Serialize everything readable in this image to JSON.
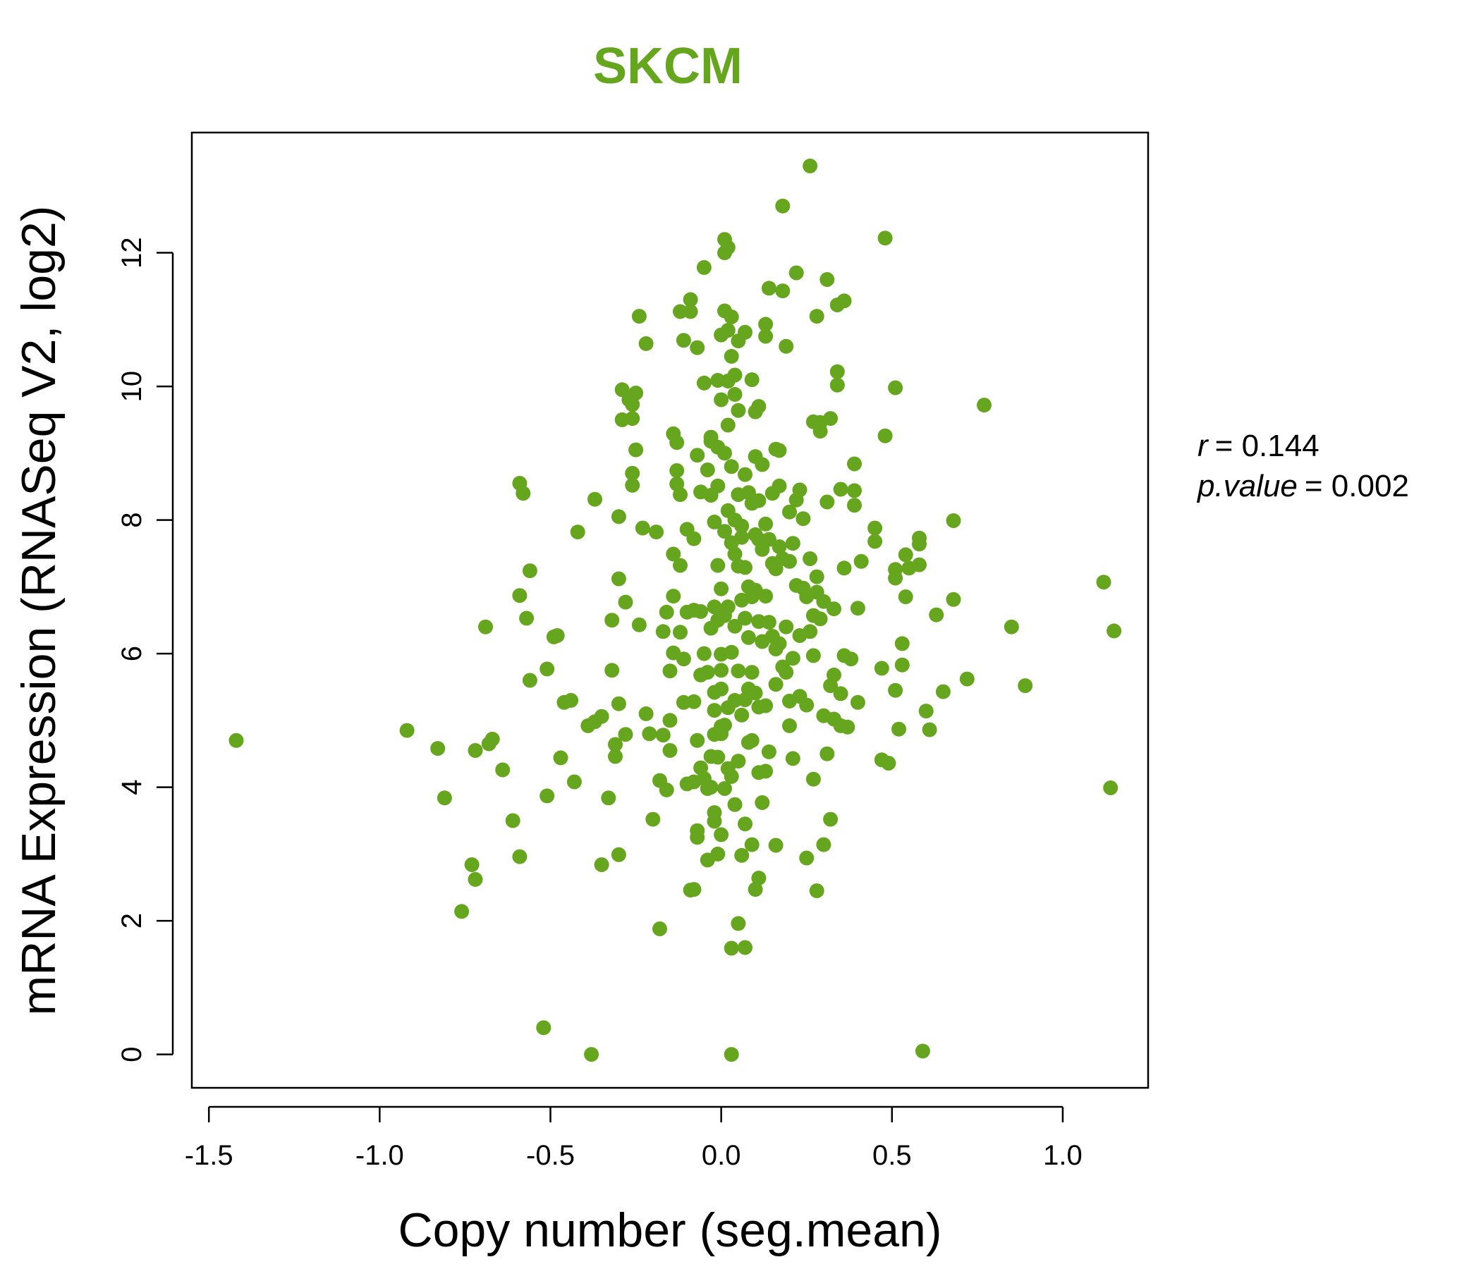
{
  "chart_data": {
    "type": "scatter",
    "title": "SKCM",
    "xlabel": "Copy number (seg.mean)",
    "ylabel": "mRNA Expression (RNASeq V2, log2)",
    "xlim": [
      -1.55,
      1.25
    ],
    "ylim": [
      -0.5,
      13.8
    ],
    "x_ticks": [
      -1.5,
      -1.0,
      -0.5,
      0.0,
      0.5,
      1.0
    ],
    "x_tick_labels": [
      "-1.5",
      "-1.0",
      "-0.5",
      "0.0",
      "0.5",
      "1.0"
    ],
    "y_ticks": [
      0,
      2,
      4,
      6,
      8,
      10,
      12
    ],
    "y_tick_labels": [
      "0",
      "2",
      "4",
      "6",
      "8",
      "10",
      "12"
    ],
    "grid": false,
    "point_color": "#66a61e",
    "annotation": {
      "r_label": "r",
      "r_value": "= 0.144",
      "p_label": "p.value",
      "p_value": "= 0.002"
    },
    "points": [
      [
        -1.42,
        4.7
      ],
      [
        -0.92,
        4.85
      ],
      [
        -0.83,
        4.58
      ],
      [
        -0.81,
        3.84
      ],
      [
        -0.76,
        2.14
      ],
      [
        -0.73,
        2.84
      ],
      [
        -0.72,
        2.62
      ],
      [
        -0.72,
        4.55
      ],
      [
        -0.69,
        6.4
      ],
      [
        -0.68,
        4.65
      ],
      [
        -0.67,
        4.72
      ],
      [
        -0.64,
        4.26
      ],
      [
        -0.61,
        3.5
      ],
      [
        -0.59,
        2.96
      ],
      [
        -0.59,
        6.87
      ],
      [
        -0.59,
        8.55
      ],
      [
        -0.58,
        8.4
      ],
      [
        -0.57,
        6.53
      ],
      [
        -0.56,
        7.24
      ],
      [
        -0.56,
        5.6
      ],
      [
        -0.52,
        0.4
      ],
      [
        -0.51,
        5.77
      ],
      [
        -0.51,
        3.87
      ],
      [
        -0.49,
        6.25
      ],
      [
        -0.48,
        6.27
      ],
      [
        -0.47,
        4.44
      ],
      [
        -0.46,
        5.27
      ],
      [
        -0.44,
        5.3
      ],
      [
        -0.43,
        4.08
      ],
      [
        -0.42,
        7.82
      ],
      [
        -0.39,
        4.92
      ],
      [
        -0.38,
        0.0
      ],
      [
        -0.37,
        4.98
      ],
      [
        -0.37,
        8.31
      ],
      [
        -0.35,
        5.06
      ],
      [
        -0.35,
        2.84
      ],
      [
        -0.33,
        3.84
      ],
      [
        -0.32,
        6.5
      ],
      [
        -0.32,
        5.75
      ],
      [
        -0.31,
        4.64
      ],
      [
        -0.31,
        4.46
      ],
      [
        -0.3,
        7.12
      ],
      [
        -0.3,
        8.05
      ],
      [
        -0.3,
        5.25
      ],
      [
        -0.3,
        2.99
      ],
      [
        -0.29,
        9.95
      ],
      [
        -0.29,
        9.5
      ],
      [
        -0.28,
        6.77
      ],
      [
        -0.28,
        4.79
      ],
      [
        -0.27,
        9.8
      ],
      [
        -0.26,
        9.52
      ],
      [
        -0.25,
        9.9
      ],
      [
        -0.26,
        9.73
      ],
      [
        -0.26,
        8.7
      ],
      [
        -0.26,
        8.52
      ],
      [
        -0.24,
        11.05
      ],
      [
        -0.25,
        9.05
      ],
      [
        -0.24,
        6.43
      ],
      [
        -0.23,
        7.88
      ],
      [
        -0.22,
        5.1
      ],
      [
        -0.22,
        10.64
      ],
      [
        -0.21,
        4.8
      ],
      [
        -0.2,
        3.52
      ],
      [
        -0.19,
        7.82
      ],
      [
        -0.18,
        1.88
      ],
      [
        -0.18,
        4.1
      ],
      [
        -0.17,
        4.78
      ],
      [
        -0.17,
        6.33
      ],
      [
        -0.16,
        6.62
      ],
      [
        -0.16,
        3.96
      ],
      [
        -0.15,
        5.0
      ],
      [
        -0.15,
        5.74
      ],
      [
        -0.15,
        4.55
      ],
      [
        -0.14,
        6.01
      ],
      [
        -0.14,
        6.86
      ],
      [
        -0.14,
        7.49
      ],
      [
        -0.14,
        9.29
      ],
      [
        -0.13,
        9.16
      ],
      [
        -0.13,
        8.74
      ],
      [
        -0.13,
        8.54
      ],
      [
        -0.12,
        7.32
      ],
      [
        -0.12,
        8.38
      ],
      [
        -0.12,
        6.32
      ],
      [
        -0.12,
        11.12
      ],
      [
        -0.11,
        10.69
      ],
      [
        -0.11,
        5.27
      ],
      [
        -0.11,
        5.92
      ],
      [
        -0.1,
        4.05
      ],
      [
        -0.1,
        7.86
      ],
      [
        -0.1,
        6.62
      ],
      [
        -0.09,
        11.3
      ],
      [
        -0.09,
        2.46
      ],
      [
        -0.09,
        11.12
      ],
      [
        -0.08,
        4.08
      ],
      [
        -0.08,
        5.28
      ],
      [
        -0.08,
        2.47
      ],
      [
        -0.08,
        6.65
      ],
      [
        -0.08,
        7.72
      ],
      [
        -0.07,
        3.35
      ],
      [
        -0.07,
        3.25
      ],
      [
        -0.07,
        8.97
      ],
      [
        -0.07,
        10.58
      ],
      [
        -0.07,
        4.7
      ],
      [
        -0.06,
        6.63
      ],
      [
        -0.06,
        5.68
      ],
      [
        -0.06,
        4.29
      ],
      [
        -0.06,
        8.42
      ],
      [
        -0.05,
        4.13
      ],
      [
        -0.05,
        11.78
      ],
      [
        -0.05,
        6.0
      ],
      [
        -0.05,
        10.05
      ],
      [
        -0.04,
        5.72
      ],
      [
        -0.04,
        3.98
      ],
      [
        -0.04,
        2.91
      ],
      [
        -0.04,
        8.75
      ],
      [
        -0.03,
        4.0
      ],
      [
        -0.03,
        9.18
      ],
      [
        -0.03,
        9.24
      ],
      [
        -0.03,
        6.38
      ],
      [
        -0.03,
        4.46
      ],
      [
        -0.03,
        8.37
      ],
      [
        -0.02,
        6.7
      ],
      [
        -0.02,
        7.97
      ],
      [
        -0.02,
        4.79
      ],
      [
        -0.02,
        5.42
      ],
      [
        -0.02,
        3.62
      ],
      [
        -0.02,
        3.49
      ],
      [
        -0.02,
        5.15
      ],
      [
        -0.01,
        4.45
      ],
      [
        -0.01,
        9.09
      ],
      [
        -0.01,
        8.51
      ],
      [
        -0.01,
        7.32
      ],
      [
        -0.01,
        6.5
      ],
      [
        -0.01,
        10.09
      ],
      [
        -0.01,
        3.0
      ],
      [
        0.0,
        4.91
      ],
      [
        0.0,
        10.77
      ],
      [
        0.0,
        9.8
      ],
      [
        0.0,
        6.97
      ],
      [
        0.0,
        5.47
      ],
      [
        0.0,
        5.75
      ],
      [
        0.0,
        5.99
      ],
      [
        0.0,
        4.8
      ],
      [
        0.0,
        3.29
      ],
      [
        0.01,
        12.0
      ],
      [
        0.01,
        12.2
      ],
      [
        0.01,
        11.13
      ],
      [
        0.01,
        9.0
      ],
      [
        0.01,
        7.83
      ],
      [
        0.01,
        6.57
      ],
      [
        0.01,
        4.93
      ],
      [
        0.01,
        3.98
      ],
      [
        0.02,
        12.08
      ],
      [
        0.02,
        10.84
      ],
      [
        0.02,
        10.08
      ],
      [
        0.02,
        9.42
      ],
      [
        0.02,
        8.14
      ],
      [
        0.02,
        5.19
      ],
      [
        0.02,
        6.7
      ],
      [
        0.02,
        4.28
      ],
      [
        0.03,
        11.04
      ],
      [
        0.03,
        10.45
      ],
      [
        0.03,
        8.8
      ],
      [
        0.03,
        7.66
      ],
      [
        0.03,
        6.02
      ],
      [
        0.03,
        4.16
      ],
      [
        0.03,
        1.59
      ],
      [
        0.03,
        0.0
      ],
      [
        0.04,
        10.17
      ],
      [
        0.04,
        9.88
      ],
      [
        0.04,
        8.0
      ],
      [
        0.04,
        7.49
      ],
      [
        0.04,
        6.41
      ],
      [
        0.04,
        5.3
      ],
      [
        0.04,
        3.74
      ],
      [
        0.05,
        10.68
      ],
      [
        0.05,
        9.64
      ],
      [
        0.05,
        8.38
      ],
      [
        0.05,
        7.31
      ],
      [
        0.05,
        5.74
      ],
      [
        0.05,
        4.39
      ],
      [
        0.05,
        1.96
      ],
      [
        0.06,
        7.74
      ],
      [
        0.06,
        6.8
      ],
      [
        0.06,
        5.08
      ],
      [
        0.06,
        2.98
      ],
      [
        0.06,
        7.91
      ],
      [
        0.07,
        10.81
      ],
      [
        0.07,
        8.68
      ],
      [
        0.07,
        7.29
      ],
      [
        0.07,
        6.53
      ],
      [
        0.07,
        5.31
      ],
      [
        0.07,
        3.45
      ],
      [
        0.07,
        1.6
      ],
      [
        0.08,
        8.41
      ],
      [
        0.08,
        7.0
      ],
      [
        0.08,
        6.24
      ],
      [
        0.08,
        5.47
      ],
      [
        0.08,
        4.67
      ],
      [
        0.09,
        10.1
      ],
      [
        0.09,
        8.25
      ],
      [
        0.09,
        6.85
      ],
      [
        0.09,
        5.72
      ],
      [
        0.09,
        4.7
      ],
      [
        0.09,
        3.14
      ],
      [
        0.1,
        9.62
      ],
      [
        0.1,
        8.95
      ],
      [
        0.1,
        7.78
      ],
      [
        0.1,
        6.95
      ],
      [
        0.1,
        5.41
      ],
      [
        0.1,
        2.47
      ],
      [
        0.11,
        9.7
      ],
      [
        0.11,
        8.29
      ],
      [
        0.11,
        7.71
      ],
      [
        0.11,
        6.48
      ],
      [
        0.11,
        5.2
      ],
      [
        0.11,
        4.22
      ],
      [
        0.11,
        2.64
      ],
      [
        0.12,
        8.83
      ],
      [
        0.12,
        7.56
      ],
      [
        0.12,
        6.18
      ],
      [
        0.12,
        3.77
      ],
      [
        0.13,
        10.93
      ],
      [
        0.13,
        10.75
      ],
      [
        0.13,
        7.94
      ],
      [
        0.13,
        6.86
      ],
      [
        0.13,
        5.22
      ],
      [
        0.13,
        4.24
      ],
      [
        0.14,
        11.47
      ],
      [
        0.14,
        7.71
      ],
      [
        0.14,
        6.47
      ],
      [
        0.14,
        4.53
      ],
      [
        0.15,
        8.4
      ],
      [
        0.15,
        7.35
      ],
      [
        0.15,
        6.26
      ],
      [
        0.16,
        9.06
      ],
      [
        0.16,
        7.27
      ],
      [
        0.16,
        6.07
      ],
      [
        0.16,
        5.54
      ],
      [
        0.16,
        3.13
      ],
      [
        0.17,
        9.04
      ],
      [
        0.17,
        8.51
      ],
      [
        0.17,
        7.6
      ],
      [
        0.17,
        6.15
      ],
      [
        0.18,
        12.7
      ],
      [
        0.18,
        11.43
      ],
      [
        0.18,
        7.42
      ],
      [
        0.18,
        5.8
      ],
      [
        0.19,
        10.6
      ],
      [
        0.19,
        6.4
      ],
      [
        0.19,
        5.72
      ],
      [
        0.2,
        8.12
      ],
      [
        0.2,
        7.38
      ],
      [
        0.2,
        5.29
      ],
      [
        0.2,
        4.92
      ],
      [
        0.21,
        7.65
      ],
      [
        0.21,
        5.93
      ],
      [
        0.21,
        4.43
      ],
      [
        0.22,
        11.7
      ],
      [
        0.22,
        8.3
      ],
      [
        0.22,
        7.02
      ],
      [
        0.23,
        8.45
      ],
      [
        0.23,
        6.27
      ],
      [
        0.23,
        5.36
      ],
      [
        0.24,
        8.02
      ],
      [
        0.24,
        6.98
      ],
      [
        0.25,
        6.85
      ],
      [
        0.25,
        5.23
      ],
      [
        0.25,
        2.94
      ],
      [
        0.26,
        13.3
      ],
      [
        0.26,
        7.42
      ],
      [
        0.26,
        6.33
      ],
      [
        0.27,
        9.47
      ],
      [
        0.27,
        6.57
      ],
      [
        0.27,
        5.97
      ],
      [
        0.27,
        4.12
      ],
      [
        0.28,
        11.05
      ],
      [
        0.28,
        7.15
      ],
      [
        0.28,
        6.92
      ],
      [
        0.28,
        2.45
      ],
      [
        0.29,
        9.46
      ],
      [
        0.29,
        9.33
      ],
      [
        0.29,
        6.52
      ],
      [
        0.3,
        6.78
      ],
      [
        0.3,
        5.07
      ],
      [
        0.3,
        3.14
      ],
      [
        0.31,
        11.6
      ],
      [
        0.31,
        8.27
      ],
      [
        0.31,
        4.5
      ],
      [
        0.32,
        9.52
      ],
      [
        0.32,
        5.52
      ],
      [
        0.32,
        3.52
      ],
      [
        0.33,
        6.67
      ],
      [
        0.33,
        5.68
      ],
      [
        0.33,
        5.02
      ],
      [
        0.34,
        10.02
      ],
      [
        0.34,
        10.22
      ],
      [
        0.34,
        11.22
      ],
      [
        0.35,
        8.46
      ],
      [
        0.35,
        5.4
      ],
      [
        0.35,
        4.92
      ],
      [
        0.36,
        11.28
      ],
      [
        0.36,
        7.28
      ],
      [
        0.36,
        5.97
      ],
      [
        0.37,
        4.9
      ],
      [
        0.38,
        5.92
      ],
      [
        0.39,
        8.84
      ],
      [
        0.39,
        8.44
      ],
      [
        0.39,
        8.22
      ],
      [
        0.4,
        6.68
      ],
      [
        0.4,
        5.27
      ],
      [
        0.41,
        7.38
      ],
      [
        0.45,
        7.68
      ],
      [
        0.45,
        7.88
      ],
      [
        0.47,
        5.78
      ],
      [
        0.47,
        4.41
      ],
      [
        0.48,
        12.22
      ],
      [
        0.48,
        9.26
      ],
      [
        0.49,
        4.36
      ],
      [
        0.51,
        9.98
      ],
      [
        0.51,
        7.26
      ],
      [
        0.51,
        7.13
      ],
      [
        0.51,
        5.45
      ],
      [
        0.52,
        4.87
      ],
      [
        0.53,
        6.15
      ],
      [
        0.53,
        5.83
      ],
      [
        0.54,
        7.48
      ],
      [
        0.54,
        6.85
      ],
      [
        0.55,
        7.28
      ],
      [
        0.58,
        7.33
      ],
      [
        0.58,
        7.64
      ],
      [
        0.58,
        7.73
      ],
      [
        0.59,
        0.05
      ],
      [
        0.6,
        5.14
      ],
      [
        0.61,
        4.86
      ],
      [
        0.63,
        6.58
      ],
      [
        0.65,
        5.43
      ],
      [
        0.68,
        7.99
      ],
      [
        0.68,
        6.81
      ],
      [
        0.72,
        5.62
      ],
      [
        0.77,
        9.72
      ],
      [
        0.85,
        6.4
      ],
      [
        0.89,
        5.52
      ],
      [
        1.12,
        7.07
      ],
      [
        1.14,
        3.99
      ],
      [
        1.15,
        6.34
      ]
    ]
  }
}
